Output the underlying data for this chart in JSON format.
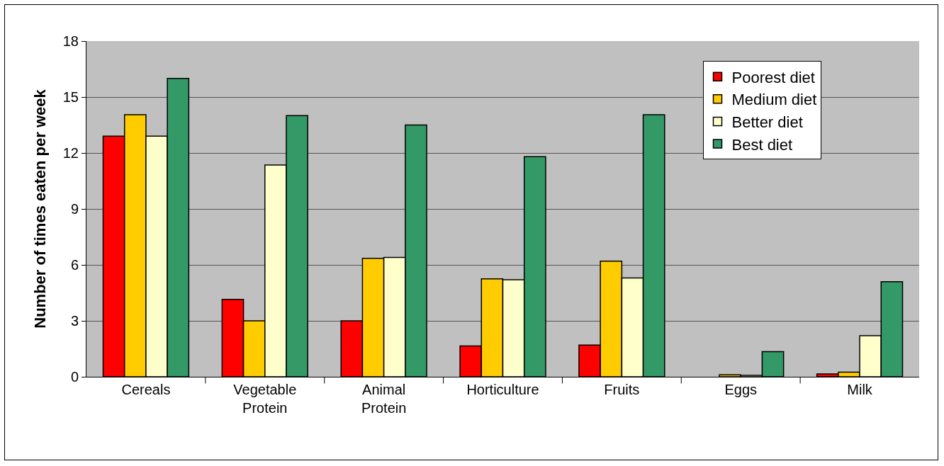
{
  "chart_data": {
    "type": "bar",
    "ylabel": "Number of times eaten per week",
    "categories": [
      "Cereals",
      "Vegetable Protein",
      "Animal Protein",
      "Horticulture",
      "Fruits",
      "Eggs",
      "Milk"
    ],
    "series": [
      {
        "name": "Poorest diet",
        "color": "#ff0000",
        "values": [
          12.9,
          4.15,
          3.0,
          1.65,
          1.7,
          null,
          0.15
        ]
      },
      {
        "name": "Medium diet",
        "color": "#ffcc00",
        "values": [
          14.05,
          3.0,
          6.35,
          5.25,
          6.2,
          0.1,
          0.25
        ]
      },
      {
        "name": "Better diet",
        "color": "#ffffcc",
        "values": [
          12.9,
          11.35,
          6.4,
          5.2,
          5.3,
          0.08,
          2.2
        ]
      },
      {
        "name": "Best diet",
        "color": "#339966",
        "values": [
          16.0,
          14.0,
          13.5,
          11.8,
          14.05,
          1.35,
          5.1
        ]
      }
    ],
    "ylim": [
      0,
      18
    ],
    "yticks": [
      0,
      3,
      6,
      9,
      12,
      15,
      18
    ],
    "grid": "y",
    "legend": "top right"
  }
}
